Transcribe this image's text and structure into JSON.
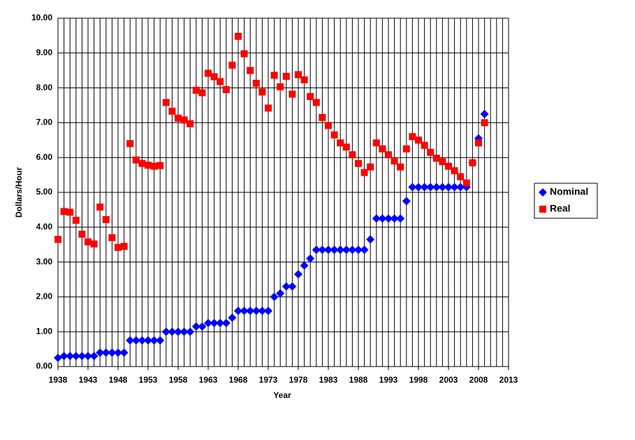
{
  "chart_data": {
    "type": "scatter",
    "x_label": "Year",
    "y_label": "Dollars/Hour",
    "x": [
      1938,
      1939,
      1940,
      1941,
      1942,
      1943,
      1944,
      1945,
      1946,
      1947,
      1948,
      1949,
      1950,
      1951,
      1952,
      1953,
      1954,
      1955,
      1956,
      1957,
      1958,
      1959,
      1960,
      1961,
      1962,
      1963,
      1964,
      1965,
      1966,
      1967,
      1968,
      1969,
      1970,
      1971,
      1972,
      1973,
      1974,
      1975,
      1976,
      1977,
      1978,
      1979,
      1980,
      1981,
      1982,
      1983,
      1984,
      1985,
      1986,
      1987,
      1988,
      1989,
      1990,
      1991,
      1992,
      1993,
      1994,
      1995,
      1996,
      1997,
      1998,
      1999,
      2000,
      2001,
      2002,
      2003,
      2004,
      2005,
      2006,
      2007,
      2008,
      2009
    ],
    "series": [
      {
        "name": "Nominal",
        "color": "#0000ff",
        "marker": "diamond",
        "values": [
          0.25,
          0.3,
          0.3,
          0.3,
          0.3,
          0.3,
          0.3,
          0.4,
          0.4,
          0.4,
          0.4,
          0.4,
          0.75,
          0.75,
          0.75,
          0.75,
          0.75,
          0.75,
          1.0,
          1.0,
          1.0,
          1.0,
          1.0,
          1.15,
          1.15,
          1.25,
          1.25,
          1.25,
          1.25,
          1.4,
          1.6,
          1.6,
          1.6,
          1.6,
          1.6,
          1.6,
          2.0,
          2.1,
          2.3,
          2.3,
          2.65,
          2.9,
          3.1,
          3.35,
          3.35,
          3.35,
          3.35,
          3.35,
          3.35,
          3.35,
          3.35,
          3.35,
          3.65,
          4.25,
          4.25,
          4.25,
          4.25,
          4.25,
          4.75,
          5.15,
          5.15,
          5.15,
          5.15,
          5.15,
          5.15,
          5.15,
          5.15,
          5.15,
          5.15,
          5.85,
          6.55,
          7.25
        ]
      },
      {
        "name": "Real",
        "color": "#ff0000",
        "marker": "square",
        "values": [
          3.65,
          4.45,
          4.43,
          4.2,
          3.8,
          3.58,
          3.52,
          4.58,
          4.22,
          3.7,
          3.42,
          3.45,
          6.4,
          5.93,
          5.83,
          5.78,
          5.75,
          5.77,
          7.58,
          7.33,
          7.13,
          7.08,
          6.97,
          7.93,
          7.86,
          8.42,
          8.32,
          8.18,
          7.95,
          8.65,
          9.48,
          8.98,
          8.5,
          8.13,
          7.88,
          7.42,
          8.36,
          8.03,
          8.33,
          7.82,
          8.38,
          8.23,
          7.75,
          7.58,
          7.15,
          6.92,
          6.65,
          6.42,
          6.3,
          6.08,
          5.83,
          5.57,
          5.73,
          6.42,
          6.25,
          6.08,
          5.9,
          5.73,
          6.25,
          6.6,
          6.5,
          6.35,
          6.15,
          5.98,
          5.88,
          5.75,
          5.62,
          5.45,
          5.27,
          5.85,
          6.42,
          7.0
        ]
      }
    ],
    "xlim": [
      1938,
      2013
    ],
    "xticks": [
      1938,
      1943,
      1948,
      1953,
      1958,
      1963,
      1968,
      1973,
      1978,
      1983,
      1988,
      1993,
      1998,
      2003,
      2008,
      2013
    ],
    "ylim": [
      0,
      10
    ],
    "yticks": [
      {
        "value": 0,
        "label": "0.00"
      },
      {
        "value": 1,
        "label": "1.00"
      },
      {
        "value": 2,
        "label": "2.00"
      },
      {
        "value": 3,
        "label": "3.00"
      },
      {
        "value": 4,
        "label": "4.00"
      },
      {
        "value": 5,
        "label": "5.00"
      },
      {
        "value": 6,
        "label": "6.00"
      },
      {
        "value": 7,
        "label": "7.00"
      },
      {
        "value": 8,
        "label": "8.00"
      },
      {
        "value": 9,
        "label": "9.00"
      },
      {
        "value": 10,
        "label": "10.00"
      }
    ],
    "grid": true,
    "legend": "right"
  }
}
